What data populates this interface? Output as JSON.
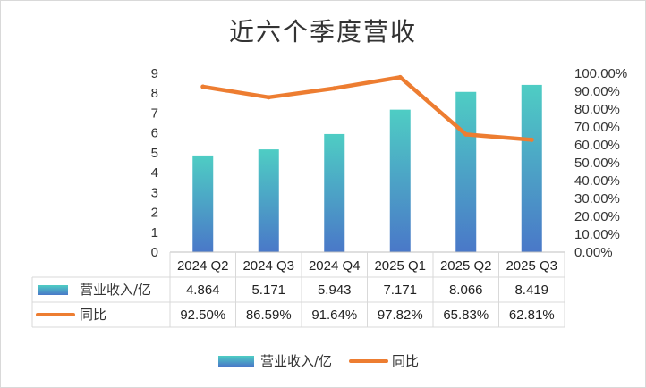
{
  "chart_data": {
    "type": "bar",
    "title": "近六个季度营收",
    "categories": [
      "2024 Q2",
      "2024 Q3",
      "2024 Q4",
      "2025 Q1",
      "2025 Q2",
      "2025 Q3"
    ],
    "series": [
      {
        "name": "营业收入/亿",
        "type": "bar",
        "axis": "left",
        "values": [
          4.864,
          5.171,
          5.943,
          7.171,
          8.066,
          8.419
        ],
        "display": [
          "4.864",
          "5.171",
          "5.943",
          "7.171",
          "8.066",
          "8.419"
        ]
      },
      {
        "name": "同比",
        "type": "line",
        "axis": "right",
        "values": [
          92.5,
          86.59,
          91.64,
          97.82,
          65.83,
          62.81
        ],
        "display": [
          "92.50%",
          "86.59%",
          "91.64%",
          "97.82%",
          "65.83%",
          "62.81%"
        ]
      }
    ],
    "y_left": {
      "min": 0,
      "max": 9,
      "ticks": [
        "0",
        "1",
        "2",
        "3",
        "4",
        "5",
        "6",
        "7",
        "8",
        "9"
      ]
    },
    "y_right": {
      "min": 0,
      "max": 100,
      "ticks": [
        "0.00%",
        "10.00%",
        "20.00%",
        "30.00%",
        "40.00%",
        "50.00%",
        "60.00%",
        "70.00%",
        "80.00%",
        "90.00%",
        "100.00%"
      ]
    },
    "legend": {
      "position": "bottom",
      "items": [
        "营业收入/亿",
        "同比"
      ]
    },
    "data_table": true,
    "grid": false
  },
  "colors": {
    "bar_top": "#4ecdc4",
    "bar_bottom": "#4a78c8",
    "line": "#ed7d31",
    "table_border": "#d9d9d9",
    "axis": "#bfbfbf"
  }
}
